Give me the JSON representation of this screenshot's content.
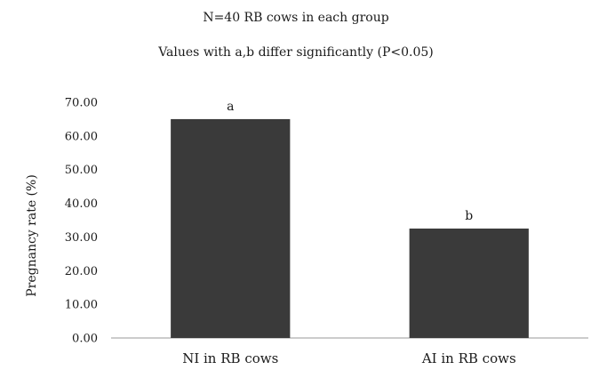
{
  "chart_data": {
    "type": "bar",
    "title": "N=40 RB cows in each group",
    "subtitle": "Values with a,b differ significantly (P<0.05)",
    "xlabel": "",
    "ylabel": "Pregnancy rate (%)",
    "ylim": [
      0,
      70
    ],
    "y_ticks": [
      "0.00",
      "10.00",
      "20.00",
      "30.00",
      "40.00",
      "50.00",
      "60.00",
      "70.00"
    ],
    "categories": [
      "NI in RB cows",
      "AI in RB cows"
    ],
    "values": [
      65,
      32.5
    ],
    "data_labels": [
      "a",
      "b"
    ],
    "bar_color": "#3a3a3a",
    "grid": false
  }
}
